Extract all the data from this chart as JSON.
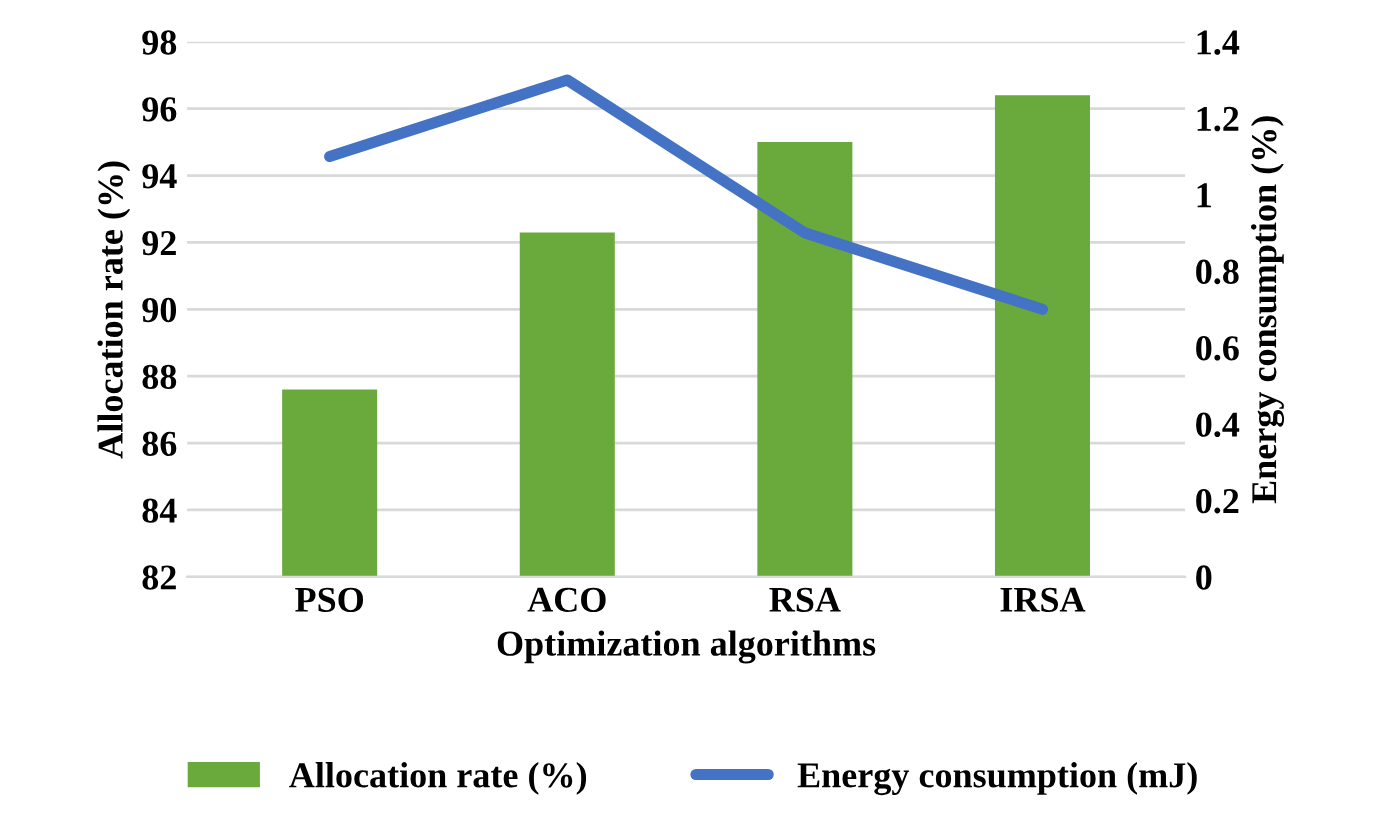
{
  "chart_data": {
    "type": "bar",
    "xlabel": "Optimization algorithms",
    "ylabel": "Allocation rate (%)",
    "y2label": "Energy consumption (%)",
    "categories": [
      "PSO",
      "ACO",
      "RSA",
      "IRSA"
    ],
    "series": [
      {
        "name": "Allocation rate (%)",
        "color": "#6aaa3c",
        "values": [
          87.6,
          92.3,
          95.0,
          96.4
        ]
      },
      {
        "name": "Energy consumption (mJ)",
        "type": "line",
        "axis": "y2",
        "color": "#4472c4",
        "values": [
          1.1,
          1.3,
          0.9,
          0.7
        ]
      }
    ],
    "ylim": [
      82,
      98
    ],
    "yticks": [
      82,
      84,
      86,
      88,
      90,
      92,
      94,
      96,
      98
    ],
    "y2lim": [
      0,
      1.4
    ],
    "y2ticks": [
      0,
      {
        "value": 0.2,
        "label": "0.2"
      },
      {
        "value": 0.4,
        "label": "0.4"
      },
      {
        "value": 0.6,
        "label": "0.6"
      },
      {
        "value": 0.8,
        "label": "0.8"
      },
      1,
      {
        "value": 1.2,
        "label": "1.2"
      },
      {
        "value": 1.4,
        "label": "1.4"
      }
    ],
    "grid": "y",
    "legend": "bottom"
  }
}
